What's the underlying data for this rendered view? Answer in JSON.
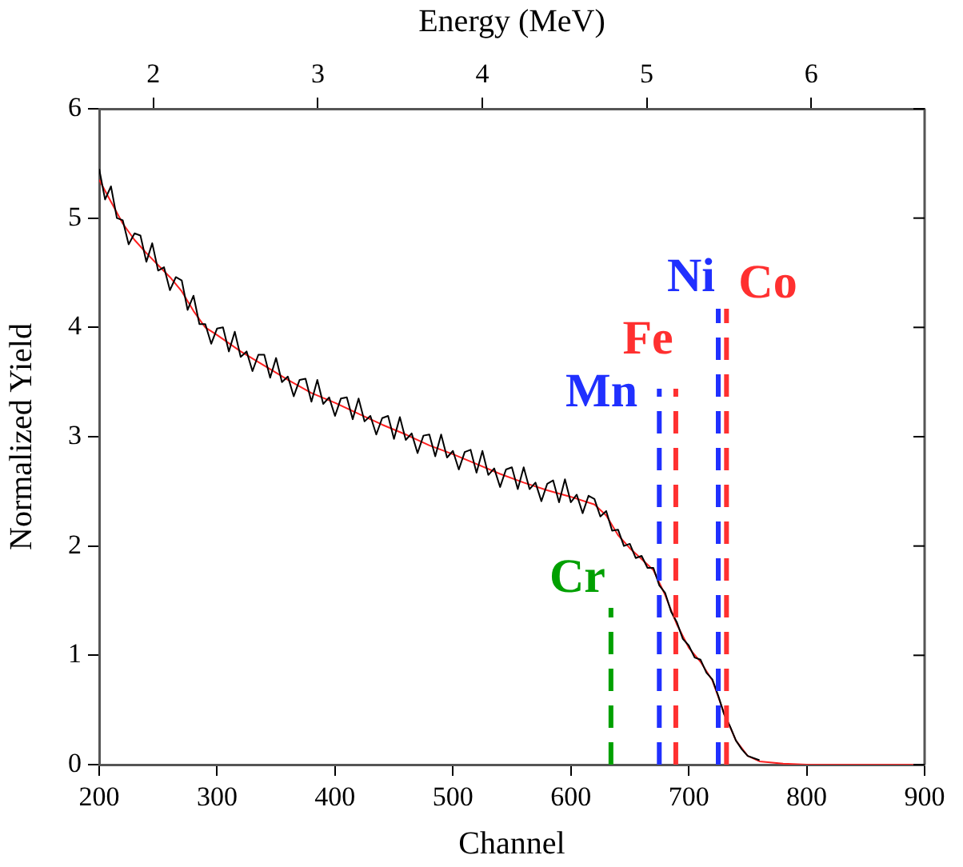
{
  "chart_data": {
    "type": "line",
    "xlabel": "Channel",
    "ylabel": "Normalized Yield",
    "x2label": "Energy (MeV)",
    "xlim": [
      200,
      900
    ],
    "xticks": [
      200,
      300,
      400,
      500,
      600,
      700,
      800,
      900
    ],
    "ylim": [
      0,
      6
    ],
    "yticks": [
      0,
      1,
      2,
      3,
      4,
      5,
      6
    ],
    "x2lim": [
      1.67,
      6.69
    ],
    "x2ticks": [
      2,
      3,
      4,
      5,
      6
    ],
    "grid": false,
    "legend": false,
    "marker": "none",
    "line_style": "solid",
    "series": [
      {
        "color": "#000000",
        "x": [
          200,
          205,
          210,
          215,
          220,
          225,
          230,
          235,
          240,
          245,
          250,
          255,
          260,
          265,
          270,
          275,
          280,
          285,
          290,
          295,
          300,
          305,
          310,
          315,
          320,
          325,
          330,
          335,
          340,
          345,
          350,
          355,
          360,
          365,
          370,
          375,
          380,
          385,
          390,
          395,
          400,
          405,
          410,
          415,
          420,
          425,
          430,
          435,
          440,
          445,
          450,
          455,
          460,
          465,
          470,
          475,
          480,
          485,
          490,
          495,
          500,
          505,
          510,
          515,
          520,
          525,
          530,
          535,
          540,
          545,
          550,
          555,
          560,
          565,
          570,
          575,
          580,
          585,
          590,
          595,
          600,
          605,
          610,
          615,
          620,
          625,
          630,
          635,
          640,
          645,
          650,
          655,
          660,
          665,
          670,
          675,
          680,
          685,
          690,
          695,
          700,
          705,
          710,
          715,
          720,
          725,
          730,
          735,
          740,
          745,
          750,
          760
        ],
        "values": [
          5.45,
          5.17,
          5.29,
          5.0,
          4.98,
          4.76,
          4.86,
          4.84,
          4.6,
          4.77,
          4.52,
          4.55,
          4.34,
          4.46,
          4.43,
          4.16,
          4.29,
          4.03,
          4.03,
          3.85,
          3.99,
          4.0,
          3.78,
          3.96,
          3.73,
          3.78,
          3.6,
          3.75,
          3.75,
          3.54,
          3.72,
          3.5,
          3.55,
          3.37,
          3.52,
          3.53,
          3.32,
          3.52,
          3.3,
          3.36,
          3.19,
          3.35,
          3.36,
          3.16,
          3.35,
          3.14,
          3.19,
          3.02,
          3.17,
          3.19,
          2.98,
          3.18,
          2.97,
          3.03,
          2.85,
          3.01,
          3.02,
          2.82,
          3.02,
          2.81,
          2.87,
          2.7,
          2.86,
          2.88,
          2.67,
          2.87,
          2.65,
          2.71,
          2.54,
          2.7,
          2.72,
          2.52,
          2.72,
          2.52,
          2.58,
          2.41,
          2.57,
          2.6,
          2.4,
          2.61,
          2.4,
          2.47,
          2.3,
          2.46,
          2.43,
          2.27,
          2.32,
          2.14,
          2.15,
          2.0,
          2.02,
          1.89,
          1.91,
          1.8,
          1.8,
          1.64,
          1.57,
          1.4,
          1.3,
          1.15,
          1.09,
          0.98,
          0.96,
          0.84,
          0.78,
          0.63,
          0.46,
          0.35,
          0.22,
          0.14,
          0.08,
          0.04
        ]
      },
      {
        "color": "#ff2020",
        "x": [
          200,
          210,
          220,
          230,
          240,
          250,
          260,
          270,
          280,
          290,
          300,
          320,
          340,
          360,
          380,
          400,
          420,
          440,
          460,
          480,
          500,
          520,
          540,
          560,
          580,
          600,
          620,
          630,
          640,
          650,
          660,
          670,
          680,
          690,
          700,
          710,
          720,
          730,
          740,
          750,
          760,
          780,
          800,
          900
        ],
        "values": [
          5.35,
          5.15,
          4.95,
          4.8,
          4.68,
          4.57,
          4.46,
          4.33,
          4.15,
          4.0,
          3.93,
          3.78,
          3.65,
          3.52,
          3.4,
          3.31,
          3.21,
          3.11,
          3.02,
          2.92,
          2.84,
          2.75,
          2.66,
          2.58,
          2.51,
          2.45,
          2.38,
          2.28,
          2.1,
          1.98,
          1.88,
          1.78,
          1.55,
          1.28,
          1.07,
          0.94,
          0.77,
          0.47,
          0.22,
          0.08,
          0.03,
          0.01,
          0,
          0
        ]
      }
    ],
    "ref_lines": [
      {
        "axis": "x",
        "value": 634,
        "label": "Cr",
        "color": "#00a000",
        "line_style": "dashed"
      },
      {
        "axis": "x",
        "value": 675,
        "label": "Mn",
        "color": "#2030ff",
        "line_style": "dashed"
      },
      {
        "axis": "x",
        "value": 689,
        "label": "Fe",
        "color": "#ff3030",
        "line_style": "dashed"
      },
      {
        "axis": "x",
        "value": 725,
        "label": "Ni",
        "color": "#2030ff",
        "line_style": "dashed"
      },
      {
        "axis": "x",
        "value": 732,
        "label": "Co",
        "color": "#ff3030",
        "line_style": "dashed"
      }
    ]
  }
}
